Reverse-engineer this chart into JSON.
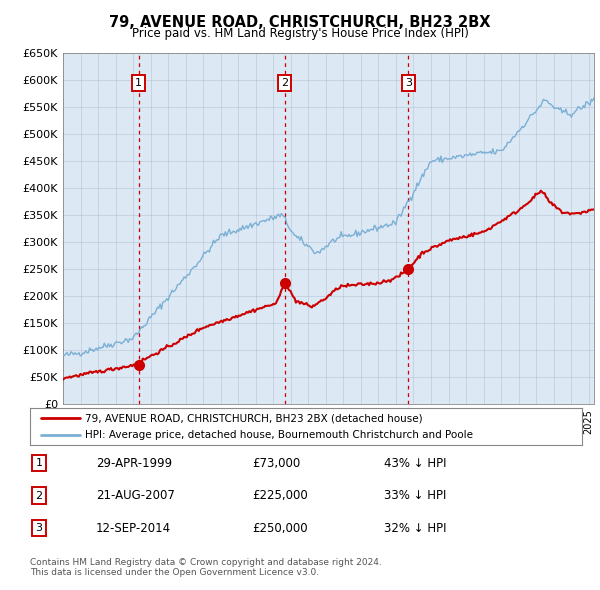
{
  "title": "79, AVENUE ROAD, CHRISTCHURCH, BH23 2BX",
  "subtitle": "Price paid vs. HM Land Registry's House Price Index (HPI)",
  "ylim": [
    0,
    650000
  ],
  "yticks": [
    0,
    50000,
    100000,
    150000,
    200000,
    250000,
    300000,
    350000,
    400000,
    450000,
    500000,
    550000,
    600000,
    650000
  ],
  "ytick_labels": [
    "£0",
    "£50K",
    "£100K",
    "£150K",
    "£200K",
    "£250K",
    "£300K",
    "£350K",
    "£400K",
    "£450K",
    "£500K",
    "£550K",
    "£600K",
    "£650K"
  ],
  "xlim_start": 1995.0,
  "xlim_end": 2025.3,
  "sale_dates": [
    1999.32,
    2007.64,
    2014.7
  ],
  "sale_prices": [
    73000,
    225000,
    250000
  ],
  "sale_labels": [
    "1",
    "2",
    "3"
  ],
  "legend_entries": [
    "79, AVENUE ROAD, CHRISTCHURCH, BH23 2BX (detached house)",
    "HPI: Average price, detached house, Bournemouth Christchurch and Poole"
  ],
  "legend_colors": [
    "#cc0000",
    "#7bafd4"
  ],
  "table_data": [
    [
      "1",
      "29-APR-1999",
      "£73,000",
      "43% ↓ HPI"
    ],
    [
      "2",
      "21-AUG-2007",
      "£225,000",
      "33% ↓ HPI"
    ],
    [
      "3",
      "12-SEP-2014",
      "£250,000",
      "32% ↓ HPI"
    ]
  ],
  "footer": "Contains HM Land Registry data © Crown copyright and database right 2024.\nThis data is licensed under the Open Government Licence v3.0.",
  "red_color": "#cc0000",
  "blue_color": "#7bafd4",
  "plot_bg_color": "#dce9f5",
  "grid_color": "#b0bed0"
}
